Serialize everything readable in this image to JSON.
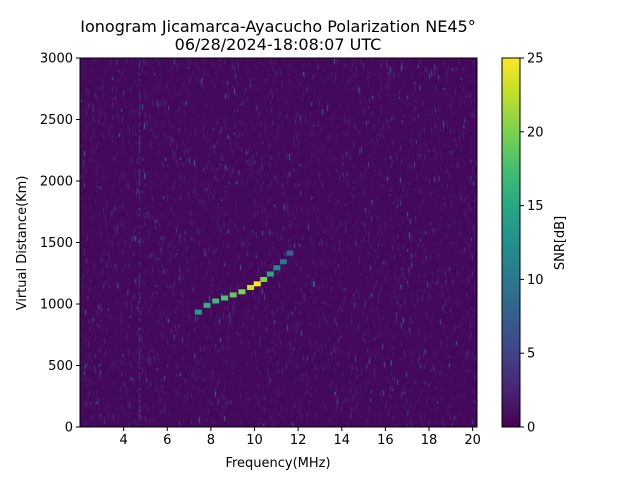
{
  "chart_data": {
    "type": "heatmap",
    "title": "Ionogram Jicamarca-Ayacucho Polarization NE45°",
    "subtitle": "06/28/2024-18:08:07 UTC",
    "xlabel": "Frequency(MHz)",
    "ylabel": "Virtual Distance(Km)",
    "xlim": [
      2.0,
      20.2
    ],
    "ylim": [
      0,
      3000
    ],
    "xticks": [
      4,
      6,
      8,
      10,
      12,
      14,
      16,
      18,
      20
    ],
    "yticks": [
      0,
      500,
      1000,
      1500,
      2000,
      2500,
      3000
    ],
    "colorbar": {
      "label": "SNR[dB]",
      "min": 0,
      "max": 25,
      "ticks": [
        0,
        5,
        10,
        15,
        20,
        25
      ],
      "colormap": "viridis"
    },
    "background_snr_db": [
      0,
      3
    ],
    "trace": {
      "name": "",
      "x": [
        7.4,
        7.8,
        8.2,
        8.6,
        9.0,
        9.4,
        9.8,
        10.1,
        10.4,
        10.7,
        11.0,
        11.3,
        11.6
      ],
      "y": [
        930,
        985,
        1020,
        1045,
        1070,
        1095,
        1130,
        1160,
        1195,
        1240,
        1290,
        1340,
        1410
      ],
      "snr_db": [
        14,
        16,
        17,
        18,
        19,
        20,
        23,
        25,
        20,
        15,
        12,
        10,
        8
      ]
    },
    "grid": false
  }
}
